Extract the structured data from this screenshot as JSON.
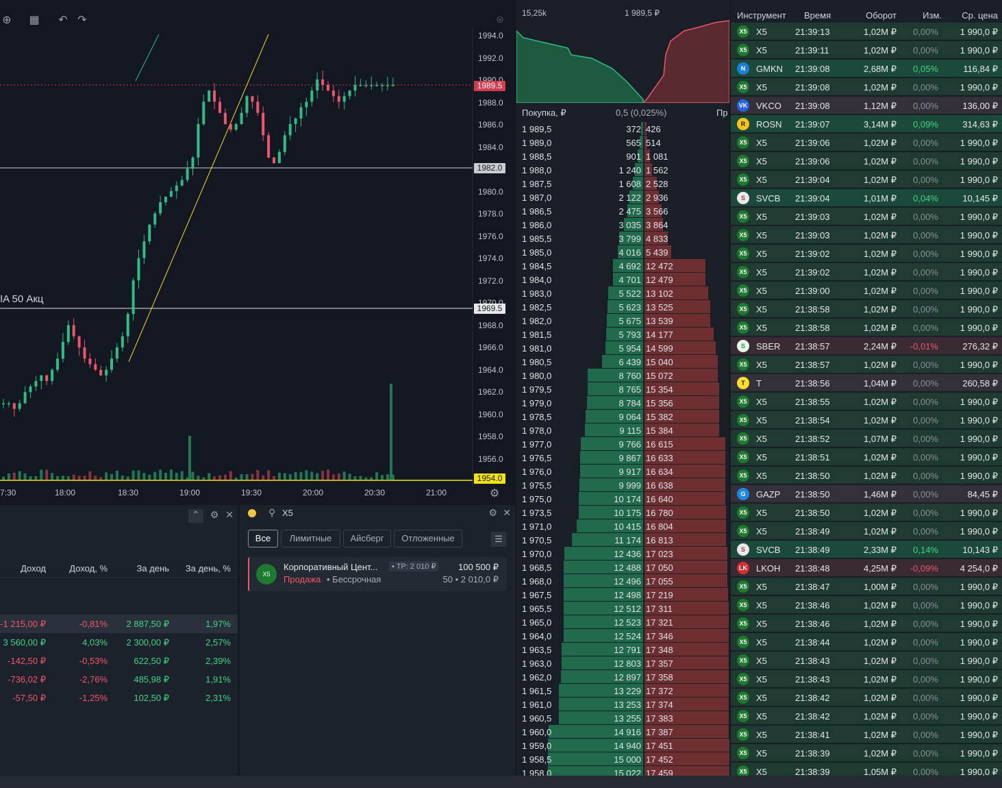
{
  "chart": {
    "legend": "IA 50 Акц",
    "price_ticks": [
      "1994.0",
      "1992.0",
      "1990.0",
      "1988.0",
      "1986.0",
      "1984.0",
      "1982.0",
      "1980.0",
      "1978.0",
      "1976.0",
      "1974.0",
      "1972.0",
      "1970.0",
      "1968.0",
      "1966.0",
      "1964.0",
      "1962.0",
      "1960.0",
      "1958.0",
      "1956.0"
    ],
    "badges": {
      "last": "1989.5",
      "line1": "1982.0",
      "line2": "1969.5",
      "line3": "1954.0"
    },
    "time_ticks": [
      "7:30",
      "18:00",
      "18:30",
      "19:00",
      "19:30",
      "20:00",
      "20:30",
      "21:00"
    ]
  },
  "portfolio": {
    "headers": [
      "Доход",
      "Доход, %",
      "За день",
      "За день, %"
    ],
    "rows": [
      [
        "-1 215,00 ₽",
        "-0,81%",
        "2 887,50 ₽",
        "1,97%"
      ],
      [
        "3 560,00 ₽",
        "4,03%",
        "2 300,00 ₽",
        "2,57%"
      ],
      [
        "-142,50 ₽",
        "-0,53%",
        "622,50 ₽",
        "2,39%"
      ],
      [
        "-736,02 ₽",
        "-2,76%",
        "485,98 ₽",
        "1,91%"
      ],
      [
        "-57,50 ₽",
        "-1,25%",
        "102,50 ₽",
        "2,31%"
      ]
    ]
  },
  "orders": {
    "search": "X5",
    "tabs": [
      "Все",
      "Лимитные",
      "Айсберг",
      "Отложенные"
    ],
    "card": {
      "name": "Корпоративный Цент...",
      "tp": "• TP: 2 010 ₽",
      "amount": "100 500 ₽",
      "side": "Продажа",
      "term": "• Бессрочная",
      "qty": "50 • 2 010,0 ₽",
      "logo": "X5"
    }
  },
  "orderbook": {
    "top_left": "15,25k",
    "top_right": "1 989,5 ₽",
    "col_buy": "Покупка, ₽",
    "spread": "0,5 (0,025%)",
    "col_sell": "Пр",
    "rows": [
      [
        "1 989,5",
        "372",
        "426"
      ],
      [
        "1 989,0",
        "565",
        "514"
      ],
      [
        "1 988,5",
        "901",
        "1 081"
      ],
      [
        "1 988,0",
        "1 240",
        "1 562"
      ],
      [
        "1 987,5",
        "1 608",
        "2 528"
      ],
      [
        "1 987,0",
        "2 122",
        "2 936"
      ],
      [
        "1 986,5",
        "2 475",
        "3 566"
      ],
      [
        "1 986,0",
        "3 035",
        "3 864"
      ],
      [
        "1 985,5",
        "3 799",
        "4 833"
      ],
      [
        "1 985,0",
        "4 016",
        "5 439"
      ],
      [
        "1 984,5",
        "4 692",
        "12 472"
      ],
      [
        "1 984,0",
        "4 701",
        "12 479"
      ],
      [
        "1 983,0",
        "5 522",
        "13 102"
      ],
      [
        "1 982,5",
        "5 623",
        "13 525"
      ],
      [
        "1 982,0",
        "5 675",
        "13 539"
      ],
      [
        "1 981,5",
        "5 793",
        "14 177"
      ],
      [
        "1 981,0",
        "5 954",
        "14 599"
      ],
      [
        "1 980,5",
        "6 439",
        "15 040"
      ],
      [
        "1 980,0",
        "8 760",
        "15 072"
      ],
      [
        "1 979,5",
        "8 765",
        "15 354"
      ],
      [
        "1 979,0",
        "8 784",
        "15 356"
      ],
      [
        "1 978,5",
        "9 064",
        "15 382"
      ],
      [
        "1 978,0",
        "9 115",
        "15 384"
      ],
      [
        "1 977,0",
        "9 766",
        "16 615"
      ],
      [
        "1 976,5",
        "9 867",
        "16 633"
      ],
      [
        "1 976,0",
        "9 917",
        "16 634"
      ],
      [
        "1 975,5",
        "9 999",
        "16 638"
      ],
      [
        "1 975,0",
        "10 174",
        "16 640"
      ],
      [
        "1 973,5",
        "10 175",
        "16 780"
      ],
      [
        "1 971,0",
        "10 415",
        "16 804"
      ],
      [
        "1 970,5",
        "11 174",
        "16 813"
      ],
      [
        "1 970,0",
        "12 436",
        "17 023"
      ],
      [
        "1 968,5",
        "12 488",
        "17 050"
      ],
      [
        "1 968,0",
        "12 496",
        "17 055"
      ],
      [
        "1 967,5",
        "12 498",
        "17 219"
      ],
      [
        "1 965,5",
        "12 512",
        "17 311"
      ],
      [
        "1 965,0",
        "12 523",
        "17 321"
      ],
      [
        "1 964,0",
        "12 524",
        "17 346"
      ],
      [
        "1 963,5",
        "12 791",
        "17 348"
      ],
      [
        "1 963,0",
        "12 803",
        "17 357"
      ],
      [
        "1 962,0",
        "12 897",
        "17 358"
      ],
      [
        "1 961,5",
        "13 229",
        "17 372"
      ],
      [
        "1 961,0",
        "13 253",
        "17 374"
      ],
      [
        "1 960,5",
        "13 255",
        "17 383"
      ],
      [
        "1 960,0",
        "14 916",
        "17 387"
      ],
      [
        "1 959,0",
        "14 940",
        "17 451"
      ],
      [
        "1 958,5",
        "15 000",
        "17 452"
      ],
      [
        "1 958,0",
        "15 022",
        "17 459"
      ]
    ]
  },
  "trades": {
    "headers": [
      "Инструмент",
      "Время",
      "Оборот",
      "Изм.",
      "Ср. цена"
    ],
    "rows": [
      [
        "X5",
        "21:39:13",
        "1,02M ₽",
        "0,00%",
        "1 990,0 ₽"
      ],
      [
        "X5",
        "21:39:11",
        "1,02M ₽",
        "0,00%",
        "1 990,0 ₽"
      ],
      [
        "GMKN",
        "21:39:08",
        "2,68M ₽",
        "0,05%",
        "116,84 ₽"
      ],
      [
        "X5",
        "21:39:08",
        "1,02M ₽",
        "0,00%",
        "1 990,0 ₽"
      ],
      [
        "VKCO",
        "21:39:08",
        "1,12M ₽",
        "0,00%",
        "136,00 ₽"
      ],
      [
        "ROSN",
        "21:39:07",
        "3,14M ₽",
        "0,09%",
        "314,63 ₽"
      ],
      [
        "X5",
        "21:39:06",
        "1,02M ₽",
        "0,00%",
        "1 990,0 ₽"
      ],
      [
        "X5",
        "21:39:06",
        "1,02M ₽",
        "0,00%",
        "1 990,0 ₽"
      ],
      [
        "X5",
        "21:39:04",
        "1,02M ₽",
        "0,00%",
        "1 990,0 ₽"
      ],
      [
        "SVCB",
        "21:39:04",
        "1,01M ₽",
        "0,04%",
        "10,145 ₽"
      ],
      [
        "X5",
        "21:39:03",
        "1,02M ₽",
        "0,00%",
        "1 990,0 ₽"
      ],
      [
        "X5",
        "21:39:03",
        "1,02M ₽",
        "0,00%",
        "1 990,0 ₽"
      ],
      [
        "X5",
        "21:39:02",
        "1,02M ₽",
        "0,00%",
        "1 990,0 ₽"
      ],
      [
        "X5",
        "21:39:02",
        "1,02M ₽",
        "0,00%",
        "1 990,0 ₽"
      ],
      [
        "X5",
        "21:39:00",
        "1,02M ₽",
        "0,00%",
        "1 990,0 ₽"
      ],
      [
        "X5",
        "21:38:58",
        "1,02M ₽",
        "0,00%",
        "1 990,0 ₽"
      ],
      [
        "X5",
        "21:38:58",
        "1,02M ₽",
        "0,00%",
        "1 990,0 ₽"
      ],
      [
        "SBER",
        "21:38:57",
        "2,24M ₽",
        "-0,01%",
        "276,32 ₽"
      ],
      [
        "X5",
        "21:38:57",
        "1,02M ₽",
        "0,00%",
        "1 990,0 ₽"
      ],
      [
        "T",
        "21:38:56",
        "1,04M ₽",
        "0,00%",
        "260,58 ₽"
      ],
      [
        "X5",
        "21:38:55",
        "1,02M ₽",
        "0,00%",
        "1 990,0 ₽"
      ],
      [
        "X5",
        "21:38:54",
        "1,02M ₽",
        "0,00%",
        "1 990,0 ₽"
      ],
      [
        "X5",
        "21:38:52",
        "1,07M ₽",
        "0,00%",
        "1 990,0 ₽"
      ],
      [
        "X5",
        "21:38:51",
        "1,02M ₽",
        "0,00%",
        "1 990,0 ₽"
      ],
      [
        "X5",
        "21:38:50",
        "1,02M ₽",
        "0,00%",
        "1 990,0 ₽"
      ],
      [
        "GAZP",
        "21:38:50",
        "1,46M ₽",
        "0,00%",
        "84,45 ₽"
      ],
      [
        "X5",
        "21:38:50",
        "1,02M ₽",
        "0,00%",
        "1 990,0 ₽"
      ],
      [
        "X5",
        "21:38:49",
        "1,02M ₽",
        "0,00%",
        "1 990,0 ₽"
      ],
      [
        "SVCB",
        "21:38:49",
        "2,33M ₽",
        "0,14%",
        "10,143 ₽"
      ],
      [
        "LKOH",
        "21:38:48",
        "4,25M ₽",
        "-0,09%",
        "4 254,0 ₽"
      ],
      [
        "X5",
        "21:38:47",
        "1,00M ₽",
        "0,00%",
        "1 990,0 ₽"
      ],
      [
        "X5",
        "21:38:46",
        "1,02M ₽",
        "0,00%",
        "1 990,0 ₽"
      ],
      [
        "X5",
        "21:38:46",
        "1,02M ₽",
        "0,00%",
        "1 990,0 ₽"
      ],
      [
        "X5",
        "21:38:44",
        "1,02M ₽",
        "0,00%",
        "1 990,0 ₽"
      ],
      [
        "X5",
        "21:38:43",
        "1,02M ₽",
        "0,00%",
        "1 990,0 ₽"
      ],
      [
        "X5",
        "21:38:43",
        "1,02M ₽",
        "0,00%",
        "1 990,0 ₽"
      ],
      [
        "X5",
        "21:38:42",
        "1,02M ₽",
        "0,00%",
        "1 990,0 ₽"
      ],
      [
        "X5",
        "21:38:42",
        "1,02M ₽",
        "0,00%",
        "1 990,0 ₽"
      ],
      [
        "X5",
        "21:38:41",
        "1,02M ₽",
        "0,00%",
        "1 990,0 ₽"
      ],
      [
        "X5",
        "21:38:39",
        "1,02M ₽",
        "0,00%",
        "1 990,0 ₽"
      ],
      [
        "X5",
        "21:38:39",
        "1,05M ₽",
        "0,00%",
        "1 990,0 ₽"
      ]
    ]
  },
  "colors": {
    "up": "#2ebd85",
    "down": "#f0566b",
    "bg": "#131722"
  }
}
